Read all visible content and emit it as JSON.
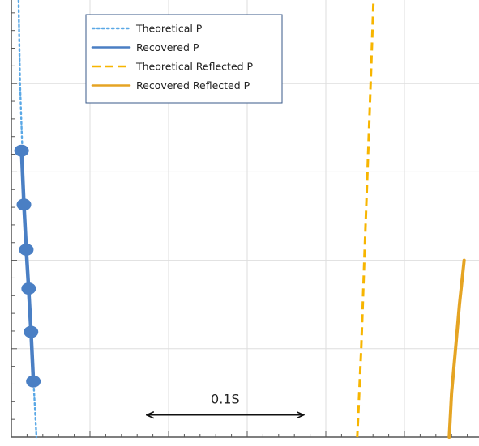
{
  "chart_data": {
    "type": "line",
    "title": "",
    "xlabel": "",
    "ylabel": "",
    "grid": true,
    "xlim": [
      0,
      6
    ],
    "ylim": [
      0,
      5
    ],
    "legend_position": "top-left",
    "colors": {
      "p": "#4a7fc4",
      "p_light": "#5aa8e6",
      "reflected": "#f7b500",
      "reflected_recovered": "#e5a423",
      "axis": "#555555",
      "grid": "#dedede",
      "text": "#222222"
    },
    "series": [
      {
        "name": "Theoretical P",
        "style": "dotted",
        "color": "#5aa8e6",
        "points": [
          [
            0.09,
            5.05
          ],
          [
            0.11,
            4.0
          ],
          [
            0.15,
            3.0
          ],
          [
            0.2,
            2.0
          ],
          [
            0.26,
            1.0
          ],
          [
            0.32,
            0.0
          ]
        ]
      },
      {
        "name": "Recovered P",
        "style": "solid-markers",
        "color": "#4a7fc4",
        "points": [
          [
            0.13,
            3.24
          ],
          [
            0.16,
            2.63
          ],
          [
            0.19,
            2.12
          ],
          [
            0.22,
            1.68
          ],
          [
            0.25,
            1.19
          ],
          [
            0.28,
            0.63
          ]
        ]
      },
      {
        "name": "Theoretical Reflected P",
        "style": "dashed",
        "color": "#f7b500",
        "points": [
          [
            4.61,
            5.05
          ],
          [
            4.57,
            4.0
          ],
          [
            4.53,
            3.0
          ],
          [
            4.49,
            2.0
          ],
          [
            4.45,
            1.0
          ],
          [
            4.4,
            0.0
          ]
        ]
      },
      {
        "name": "Recovered Reflected P",
        "style": "solid",
        "color": "#e5a423",
        "points": [
          [
            5.76,
            2.0
          ],
          [
            5.7,
            1.5
          ],
          [
            5.65,
            1.0
          ],
          [
            5.6,
            0.5
          ],
          [
            5.57,
            0.0
          ]
        ]
      }
    ],
    "annotations": [
      {
        "label": "0.1S",
        "type": "double-arrow",
        "x_from": 1.72,
        "x_to": 3.72,
        "y": 0.25
      }
    ]
  }
}
